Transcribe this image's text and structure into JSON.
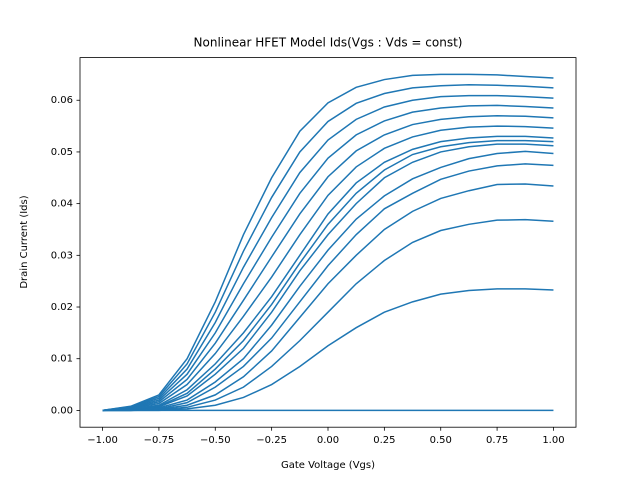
{
  "chart_data": {
    "type": "line",
    "title": "Nonlinear HFET Model Ids(Vgs : Vds = const)",
    "x_label": "Gate Voltage (Vgs)",
    "y_label": "Drain Current (Ids)",
    "x": [
      -1,
      -0.875,
      -0.75,
      -0.625,
      -0.5,
      -0.375,
      -0.25,
      -0.125,
      0,
      0.125,
      0.25,
      0.375,
      0.5,
      0.625,
      0.75,
      0.875,
      1
    ],
    "series": [
      {
        "color": "#1f77b4",
        "values": [
          0,
          0,
          0,
          0,
          0,
          0,
          0,
          0,
          0,
          0,
          0,
          0,
          0,
          0,
          0,
          0,
          0
        ]
      },
      {
        "color": "#1f77b4",
        "values": [
          0,
          0,
          0,
          0.0003,
          0.001,
          0.0025,
          0.005,
          0.0085,
          0.0125,
          0.016,
          0.019,
          0.021,
          0.0225,
          0.0232,
          0.0235,
          0.0235,
          0.0233
        ]
      },
      {
        "color": "#1f77b4",
        "values": [
          0,
          0,
          0.0001,
          0.0006,
          0.002,
          0.0045,
          0.0085,
          0.0135,
          0.019,
          0.0245,
          0.029,
          0.0325,
          0.0348,
          0.036,
          0.0368,
          0.0369,
          0.0366
        ]
      },
      {
        "color": "#1f77b4",
        "values": [
          0,
          0,
          0.0002,
          0.001,
          0.003,
          0.0065,
          0.0115,
          0.018,
          0.0245,
          0.03,
          0.035,
          0.0385,
          0.041,
          0.0425,
          0.0437,
          0.0438,
          0.0434
        ]
      },
      {
        "color": "#1f77b4",
        "values": [
          0,
          0,
          0.0003,
          0.0015,
          0.0045,
          0.0085,
          0.014,
          0.021,
          0.028,
          0.034,
          0.039,
          0.042,
          0.0447,
          0.0463,
          0.0473,
          0.0477,
          0.0474
        ]
      },
      {
        "color": "#1f77b4",
        "values": [
          0,
          0.0001,
          0.0005,
          0.002,
          0.0055,
          0.01,
          0.0165,
          0.024,
          0.031,
          0.037,
          0.0415,
          0.0448,
          0.047,
          0.0487,
          0.0497,
          0.0501,
          0.0497
        ]
      },
      {
        "color": "#1f77b4",
        "values": [
          0,
          0.0002,
          0.0007,
          0.0028,
          0.007,
          0.012,
          0.019,
          0.027,
          0.034,
          0.04,
          0.045,
          0.048,
          0.05,
          0.051,
          0.0515,
          0.0515,
          0.0512
        ]
      },
      {
        "color": "#1f77b4",
        "values": [
          0,
          0.0002,
          0.0008,
          0.0033,
          0.008,
          0.0135,
          0.0205,
          0.0285,
          0.036,
          0.042,
          0.0465,
          0.0495,
          0.051,
          0.0518,
          0.0522,
          0.0522,
          0.052
        ]
      },
      {
        "color": "#1f77b4",
        "values": [
          0,
          0.0003,
          0.001,
          0.004,
          0.009,
          0.015,
          0.022,
          0.03,
          0.038,
          0.044,
          0.048,
          0.0505,
          0.052,
          0.0527,
          0.053,
          0.053,
          0.0527
        ]
      },
      {
        "color": "#1f77b4",
        "values": [
          0,
          0.00038,
          0.00133,
          0.005,
          0.011,
          0.0182,
          0.0258,
          0.034,
          0.0416,
          0.0471,
          0.0507,
          0.0529,
          0.0542,
          0.0548,
          0.055,
          0.0549,
          0.0546
        ]
      },
      {
        "color": "#1f77b4",
        "values": [
          0,
          0.00047,
          0.00167,
          0.006,
          0.013,
          0.0213,
          0.0297,
          0.038,
          0.0452,
          0.0502,
          0.0533,
          0.0553,
          0.0563,
          0.0568,
          0.057,
          0.0569,
          0.0566
        ]
      },
      {
        "color": "#1f77b4",
        "values": [
          0,
          0.00055,
          0.002,
          0.007,
          0.015,
          0.0245,
          0.0335,
          0.042,
          0.0488,
          0.0533,
          0.056,
          0.0577,
          0.0585,
          0.0589,
          0.059,
          0.0588,
          0.0585
        ]
      },
      {
        "color": "#1f77b4",
        "values": [
          0,
          0.00063,
          0.00233,
          0.008,
          0.017,
          0.0277,
          0.0373,
          0.046,
          0.0523,
          0.0563,
          0.0587,
          0.06,
          0.0607,
          0.0609,
          0.0609,
          0.0607,
          0.0604
        ]
      },
      {
        "color": "#1f77b4",
        "values": [
          0,
          0.00072,
          0.00267,
          0.009,
          0.019,
          0.0308,
          0.0412,
          0.05,
          0.0559,
          0.0594,
          0.0613,
          0.0624,
          0.0628,
          0.063,
          0.0629,
          0.0627,
          0.0624
        ]
      },
      {
        "color": "#1f77b4",
        "values": [
          0,
          0.0008,
          0.003,
          0.01,
          0.021,
          0.034,
          0.045,
          0.054,
          0.0595,
          0.0625,
          0.064,
          0.0648,
          0.065,
          0.065,
          0.0649,
          0.0646,
          0.0643
        ]
      }
    ],
    "xlim": [
      -1.1,
      1.1
    ],
    "ylim": [
      -0.00325,
      0.06825
    ],
    "xticks": [
      {
        "value": -1,
        "label": "−1.00"
      },
      {
        "value": -0.75,
        "label": "−0.75"
      },
      {
        "value": -0.5,
        "label": "−0.50"
      },
      {
        "value": -0.25,
        "label": "−0.25"
      },
      {
        "value": 0,
        "label": "0.00"
      },
      {
        "value": 0.25,
        "label": "0.25"
      },
      {
        "value": 0.5,
        "label": "0.50"
      },
      {
        "value": 0.75,
        "label": "0.75"
      },
      {
        "value": 1,
        "label": "1.00"
      }
    ],
    "yticks": [
      {
        "value": 0,
        "label": "0.00"
      },
      {
        "value": 0.01,
        "label": "0.01"
      },
      {
        "value": 0.02,
        "label": "0.02"
      },
      {
        "value": 0.03,
        "label": "0.03"
      },
      {
        "value": 0.04,
        "label": "0.04"
      },
      {
        "value": 0.05,
        "label": "0.05"
      },
      {
        "value": 0.06,
        "label": "0.06"
      }
    ],
    "grid": false
  }
}
